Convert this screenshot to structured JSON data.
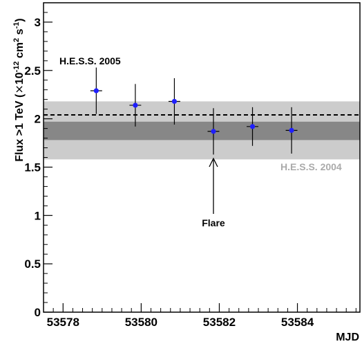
{
  "chart_data": {
    "type": "scatter",
    "x_label": "MJD",
    "y_label_parts": [
      "Flux >1 TeV (",
      "×",
      "10",
      "-12",
      " cm",
      "2",
      " s",
      "-1",
      ")"
    ],
    "xlim": [
      53577.5,
      53585.6
    ],
    "ylim": [
      0,
      3.2
    ],
    "x_ticks": [
      53578,
      53580,
      53582,
      53584
    ],
    "x_tick_labels": [
      "53578",
      "53580",
      "53582",
      "53584"
    ],
    "y_ticks": [
      0,
      0.5,
      1,
      1.5,
      2,
      2.5,
      3
    ],
    "y_tick_labels": [
      "0",
      "0.5",
      "1",
      "1.5",
      "2",
      "2.5",
      "3"
    ],
    "points": [
      {
        "x": 53578.85,
        "y": 2.29,
        "yerr_low": 0.24,
        "yerr_high": 0.24
      },
      {
        "x": 53579.85,
        "y": 2.14,
        "yerr_low": 0.22,
        "yerr_high": 0.22
      },
      {
        "x": 53580.85,
        "y": 2.18,
        "yerr_low": 0.24,
        "yerr_high": 0.24
      },
      {
        "x": 53581.85,
        "y": 1.87,
        "yerr_low": 0.24,
        "yerr_high": 0.24
      },
      {
        "x": 53582.85,
        "y": 1.92,
        "yerr_low": 0.2,
        "yerr_high": 0.2
      },
      {
        "x": 53583.85,
        "y": 1.88,
        "yerr_low": 0.24,
        "yerr_high": 0.24
      }
    ],
    "x_error_halfwidth": 0.15,
    "hess2005_level": 2.04,
    "hess2005_label": "H.E.S.S. 2005",
    "hess2004_band_outer": [
      1.58,
      2.18
    ],
    "hess2004_band_inner": [
      1.78,
      1.97
    ],
    "hess2004_label": "H.E.S.S. 2004",
    "flare_label": "Flare",
    "flare_x": 53581.85,
    "colors": {
      "point": "#1f1fff",
      "band_outer": "#cccccc",
      "band_inner": "#878787",
      "hess2004_text": "#aaaaaa",
      "axis": "#000000"
    }
  }
}
